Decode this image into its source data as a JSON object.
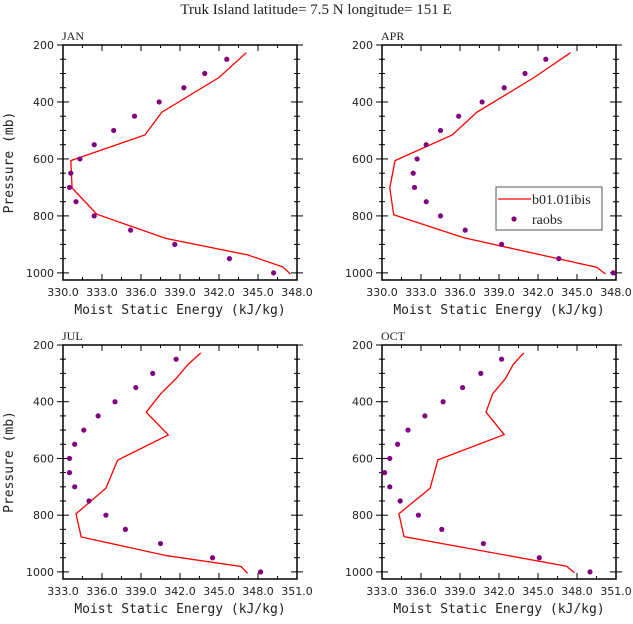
{
  "title": "Truk Island  latitude= 7.5 N longitude= 151 E",
  "colors": {
    "model": "#ff0000",
    "raobs": "#800080",
    "axis": "#000000"
  },
  "legend": {
    "placement": "inside APR panel, right-middle",
    "model_label": "b01.01ibis",
    "raobs_label": "raobs"
  },
  "chart_data": [
    {
      "type": "line+scatter",
      "panel_label": "JAN",
      "xlabel": "Moist Static Energy (kJ/kg)",
      "ylabel": "Pressure (mb)",
      "xlim": [
        330,
        348
      ],
      "ylim": [
        200,
        1025
      ],
      "y_reversed": true,
      "xticks": [
        "330.0",
        "333.0",
        "336.0",
        "339.0",
        "342.0",
        "345.0",
        "348.0"
      ],
      "yticks": [
        "200",
        "400",
        "600",
        "800",
        "1000"
      ],
      "series": [
        {
          "name": "b01.01ibis",
          "kind": "line",
          "x": [
            344.1,
            342.0,
            337.6,
            336.3,
            330.6,
            330.7,
            332.6,
            337.9,
            344.2,
            346.9,
            347.5
          ],
          "y": [
            227,
            314,
            436,
            516,
            606,
            702,
            794,
            879,
            937,
            979,
            1004
          ]
        },
        {
          "name": "raobs",
          "kind": "scatter",
          "x": [
            342.6,
            340.9,
            339.3,
            337.4,
            335.5,
            333.9,
            332.4,
            331.3,
            330.6,
            330.5,
            331.0,
            332.4,
            335.2,
            338.6,
            342.8,
            346.2
          ],
          "y": [
            250,
            300,
            350,
            400,
            450,
            500,
            550,
            600,
            650,
            700,
            750,
            800,
            850,
            900,
            950,
            1000
          ]
        }
      ]
    },
    {
      "type": "line+scatter",
      "panel_label": "APR",
      "xlabel": "Moist Static Energy (kJ/kg)",
      "ylabel": "",
      "xlim": [
        330,
        348
      ],
      "ylim": [
        200,
        1025
      ],
      "y_reversed": true,
      "xticks": [
        "330.0",
        "333.0",
        "336.0",
        "339.0",
        "342.0",
        "345.0",
        "348.0"
      ],
      "yticks": [
        "200",
        "400",
        "600",
        "800",
        "1000"
      ],
      "series": [
        {
          "name": "b01.01ibis",
          "kind": "line",
          "x": [
            344.5,
            341.7,
            337.3,
            335.4,
            331.0,
            330.6,
            330.9,
            336.3,
            346.5,
            347.2
          ],
          "y": [
            227,
            314,
            436,
            516,
            606,
            702,
            796,
            877,
            980,
            1004
          ]
        },
        {
          "name": "raobs",
          "kind": "scatter",
          "x": [
            342.6,
            341.0,
            339.4,
            337.7,
            335.9,
            334.5,
            333.4,
            332.7,
            332.4,
            332.5,
            333.4,
            334.5,
            336.4,
            339.2,
            343.6,
            347.8
          ],
          "y": [
            250,
            300,
            350,
            400,
            450,
            500,
            550,
            600,
            650,
            700,
            750,
            800,
            850,
            900,
            950,
            1000
          ]
        }
      ]
    },
    {
      "type": "line+scatter",
      "panel_label": "JUL",
      "xlabel": "Moist Static Energy (kJ/kg)",
      "ylabel": "Pressure (mb)",
      "xlim": [
        333,
        351
      ],
      "ylim": [
        200,
        1025
      ],
      "y_reversed": true,
      "xticks": [
        "333.0",
        "336.0",
        "339.0",
        "342.0",
        "345.0",
        "348.0",
        "351.0"
      ],
      "yticks": [
        "200",
        "400",
        "600",
        "800",
        "1000"
      ],
      "series": [
        {
          "name": "b01.01ibis",
          "kind": "line",
          "x": [
            343.6,
            342.6,
            341.7,
            340.5,
            339.4,
            341.1,
            337.2,
            336.3,
            334.0,
            334.4,
            341.0,
            346.7,
            347.2
          ],
          "y": [
            228,
            269,
            318,
            373,
            437,
            517,
            606,
            705,
            795,
            877,
            943,
            981,
            1005
          ]
        },
        {
          "name": "raobs",
          "kind": "scatter",
          "x": [
            341.7,
            339.9,
            338.6,
            337.0,
            335.7,
            334.6,
            333.9,
            333.5,
            333.5,
            333.9,
            335.0,
            336.3,
            337.8,
            340.5,
            344.5,
            348.2
          ],
          "y": [
            250,
            300,
            350,
            400,
            450,
            500,
            550,
            600,
            650,
            700,
            750,
            800,
            850,
            900,
            950,
            1000
          ]
        }
      ]
    },
    {
      "type": "line+scatter",
      "panel_label": "OCT",
      "xlabel": "Moist Static Energy (kJ/kg)",
      "ylabel": "",
      "xlim": [
        333,
        351
      ],
      "ylim": [
        200,
        1025
      ],
      "y_reversed": true,
      "xticks": [
        "333.0",
        "336.0",
        "339.0",
        "342.0",
        "345.0",
        "348.0",
        "351.0"
      ],
      "yticks": [
        "200",
        "400",
        "600",
        "800",
        "1000"
      ],
      "series": [
        {
          "name": "b01.01ibis",
          "kind": "line",
          "x": [
            343.9,
            343.1,
            342.5,
            341.5,
            341.0,
            342.4,
            337.3,
            336.7,
            334.3,
            334.7,
            347.2,
            347.8
          ],
          "y": [
            228,
            268,
            318,
            373,
            437,
            516,
            605,
            705,
            795,
            876,
            980,
            1003
          ]
        },
        {
          "name": "raobs",
          "kind": "scatter",
          "x": [
            342.2,
            340.6,
            339.2,
            337.7,
            336.3,
            335.0,
            334.2,
            333.6,
            333.2,
            333.6,
            334.4,
            335.8,
            337.6,
            340.8,
            345.1,
            349.0
          ],
          "y": [
            250,
            300,
            350,
            400,
            450,
            500,
            550,
            600,
            650,
            700,
            750,
            800,
            850,
            900,
            950,
            1000
          ]
        }
      ]
    }
  ]
}
